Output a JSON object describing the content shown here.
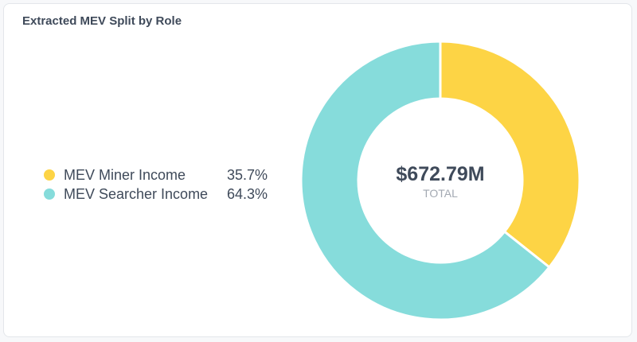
{
  "card": {
    "title": "Extracted MEV Split by Role"
  },
  "chart_data": {
    "type": "pie",
    "title": "Extracted MEV Split by Role",
    "donut": true,
    "center": {
      "value": "$672.79M",
      "label": "TOTAL"
    },
    "legend_position": "left",
    "slices": [
      {
        "name": "MEV Miner Income",
        "value": 35.7,
        "label": "35.7%",
        "color": "#fdd445"
      },
      {
        "name": "MEV Searcher Income",
        "value": 64.3,
        "label": "64.3%",
        "color": "#86dcdb"
      }
    ]
  }
}
